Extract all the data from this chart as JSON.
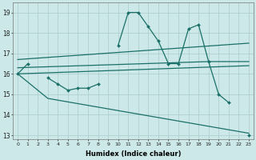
{
  "xlabel": "Humidex (Indice chaleur)",
  "x_values": [
    0,
    1,
    2,
    3,
    4,
    5,
    6,
    7,
    8,
    9,
    10,
    11,
    12,
    13,
    14,
    15,
    16,
    17,
    18,
    19,
    20,
    21,
    22,
    23
  ],
  "main_line": [
    16.0,
    16.5,
    null,
    15.8,
    15.5,
    15.2,
    15.3,
    15.3,
    15.5,
    null,
    17.4,
    19.0,
    19.0,
    18.3,
    17.6,
    16.5,
    16.5,
    18.2,
    18.4,
    16.6,
    15.0,
    14.6,
    null,
    13.0
  ],
  "env_line1_x": [
    0,
    23
  ],
  "env_line1_y": [
    16.7,
    17.5
  ],
  "env_line2_x": [
    0,
    19,
    23
  ],
  "env_line2_y": [
    16.3,
    16.6,
    16.6
  ],
  "env_line3_x": [
    0,
    23
  ],
  "env_line3_y": [
    16.0,
    16.4
  ],
  "env_line4_x": [
    0,
    3,
    23
  ],
  "env_line4_y": [
    16.0,
    14.8,
    13.1
  ],
  "ylim_min": 12.8,
  "ylim_max": 19.5,
  "yticks": [
    13,
    14,
    15,
    16,
    17,
    18,
    19
  ],
  "xlim_min": -0.5,
  "xlim_max": 23.5,
  "bg_color": "#cce8e8",
  "grid_color": "#aacccc",
  "line_color": "#1a7068"
}
